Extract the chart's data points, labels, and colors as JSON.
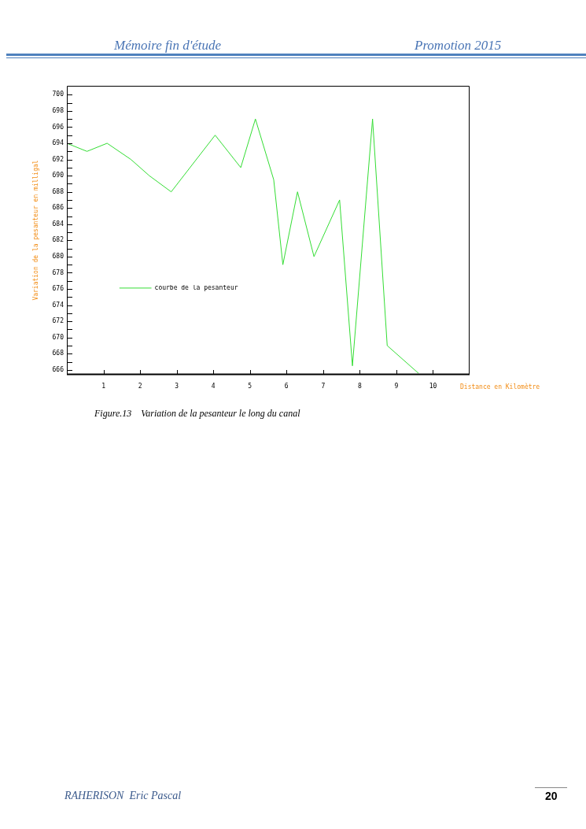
{
  "chart_data": {
    "type": "line",
    "title": "Figure.13    Variation de la pesanteur le long du canal",
    "xlabel": "Distance en Kilomètre",
    "ylabel": "Variation de la pesanteur en milligal",
    "x": [
      0,
      0.55,
      1.1,
      1.75,
      2.25,
      2.85,
      4.05,
      4.75,
      5.15,
      5.65,
      5.9,
      6.3,
      6.75,
      7.45,
      7.8,
      8.35,
      8.75,
      9.6
    ],
    "series": [
      {
        "name": "courbe de la pesanteur",
        "color": "#33dd33",
        "values": [
          694,
          693,
          694,
          692,
          690,
          688,
          695,
          691,
          697,
          689.5,
          679,
          688,
          680,
          687,
          666.5,
          697,
          669,
          665.6
        ]
      }
    ],
    "xlim": [
      0,
      11
    ],
    "ylim": [
      665.4,
      701.1
    ],
    "xticks": [
      1,
      2,
      3,
      4,
      5,
      6,
      7,
      8,
      9,
      10
    ],
    "yticks": [
      666,
      {
        "value": 667,
        "label": null
      },
      668,
      {
        "value": 669,
        "label": null
      },
      670,
      {
        "value": 671,
        "label": null
      },
      672,
      {
        "value": 673,
        "label": null
      },
      674,
      {
        "value": 675,
        "label": null
      },
      676,
      {
        "value": 677,
        "label": null
      },
      678,
      {
        "value": 679,
        "label": null
      },
      680,
      {
        "value": 681,
        "label": null
      },
      682,
      {
        "value": 683,
        "label": null
      },
      684,
      {
        "value": 685,
        "label": null
      },
      686,
      {
        "value": 687,
        "label": null
      },
      688,
      {
        "value": 689,
        "label": null
      },
      690,
      {
        "value": 691,
        "label": null
      },
      692,
      {
        "value": 693,
        "label": null
      },
      694,
      {
        "value": 695,
        "label": null
      },
      696,
      {
        "value": 697,
        "label": null
      },
      698,
      {
        "value": 699,
        "label": null
      },
      700
    ],
    "grid": false,
    "legend": "left",
    "marker": "none",
    "line_style": "solid",
    "annotations": [
      "Mémoire fin d'étude",
      "Promotion 2015",
      "RAHERISON  Eric Pascal",
      "20"
    ]
  }
}
